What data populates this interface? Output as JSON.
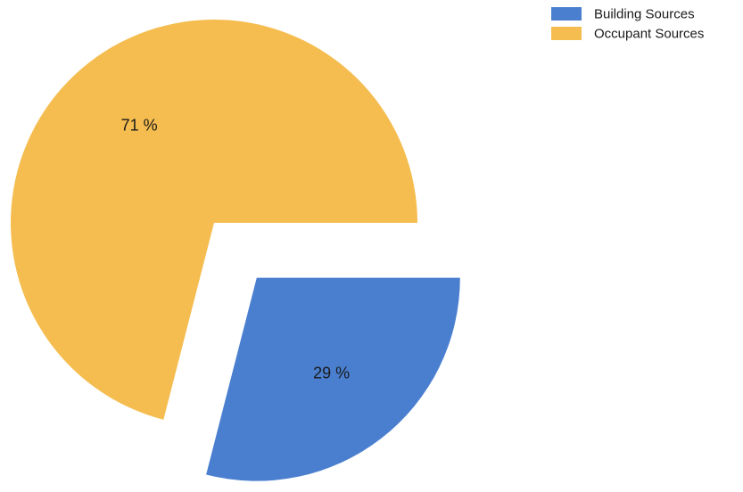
{
  "chart_data": {
    "type": "pie",
    "title": "",
    "slices": [
      {
        "name": "Building Sources",
        "value": 29,
        "label": "29 %",
        "color": "#4a7fd0",
        "exploded": true
      },
      {
        "name": "Occupant Sources",
        "value": 71,
        "label": "71 %",
        "color": "#f5bd4f",
        "exploded": false
      }
    ],
    "legend_position": "top-right",
    "start": "3 o'clock",
    "direction": "clockwise"
  }
}
